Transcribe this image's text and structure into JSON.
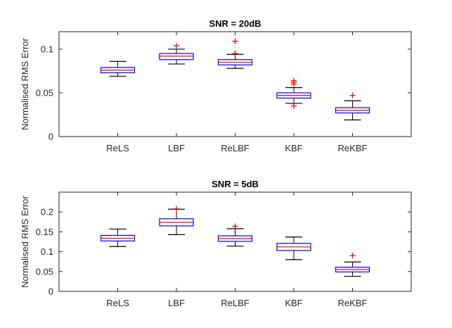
{
  "chart_data": [
    {
      "type": "box",
      "title": "SNR = 20dB",
      "ylabel": "Normalised RMS Error",
      "xlabel": "",
      "ylim": [
        0,
        0.12
      ],
      "yticks": [
        0,
        0.05,
        0.1
      ],
      "yticklabels": [
        "0",
        "0.05",
        "0.1"
      ],
      "categories": [
        "ReLS",
        "LBF",
        "ReLBF",
        "KBF",
        "ReKBF"
      ],
      "boxes": [
        {
          "whisker_low": 0.069,
          "q1": 0.073,
          "median": 0.076,
          "q3": 0.079,
          "whisker_high": 0.086,
          "outliers": []
        },
        {
          "whisker_low": 0.083,
          "q1": 0.088,
          "median": 0.092,
          "q3": 0.095,
          "whisker_high": 0.1,
          "outliers": [
            0.104
          ]
        },
        {
          "whisker_low": 0.078,
          "q1": 0.082,
          "median": 0.085,
          "q3": 0.088,
          "whisker_high": 0.094,
          "outliers": [
            0.095,
            0.109
          ]
        },
        {
          "whisker_low": 0.038,
          "q1": 0.044,
          "median": 0.047,
          "q3": 0.05,
          "whisker_high": 0.056,
          "outliers": [
            0.035,
            0.06,
            0.062,
            0.064
          ]
        },
        {
          "whisker_low": 0.019,
          "q1": 0.027,
          "median": 0.03,
          "q3": 0.033,
          "whisker_high": 0.041,
          "outliers": [
            0.047
          ]
        }
      ]
    },
    {
      "type": "box",
      "title": "SNR = 5dB",
      "ylabel": "Normalised RMS Error",
      "xlabel": "",
      "ylim": [
        0,
        0.25
      ],
      "yticks": [
        0,
        0.05,
        0.1,
        0.15,
        0.2
      ],
      "yticklabels": [
        "0",
        "0.05",
        "0.1",
        "0.15",
        "0.2"
      ],
      "categories": [
        "ReLS",
        "LBF",
        "ReLBF",
        "KBF",
        "ReKBF"
      ],
      "boxes": [
        {
          "whisker_low": 0.113,
          "q1": 0.127,
          "median": 0.134,
          "q3": 0.141,
          "whisker_high": 0.157,
          "outliers": []
        },
        {
          "whisker_low": 0.143,
          "q1": 0.165,
          "median": 0.174,
          "q3": 0.183,
          "whisker_high": 0.207,
          "outliers": [
            0.208
          ]
        },
        {
          "whisker_low": 0.114,
          "q1": 0.126,
          "median": 0.133,
          "q3": 0.14,
          "whisker_high": 0.158,
          "outliers": [
            0.164
          ]
        },
        {
          "whisker_low": 0.08,
          "q1": 0.103,
          "median": 0.112,
          "q3": 0.121,
          "whisker_high": 0.137,
          "outliers": []
        },
        {
          "whisker_low": 0.038,
          "q1": 0.049,
          "median": 0.055,
          "q3": 0.061,
          "whisker_high": 0.074,
          "outliers": [
            0.09
          ]
        }
      ]
    }
  ],
  "colors": {
    "box": "#0000ff",
    "median": "#ff0000",
    "whisker": "#000000",
    "outlier": "#ff0000",
    "axis": "#262626"
  }
}
